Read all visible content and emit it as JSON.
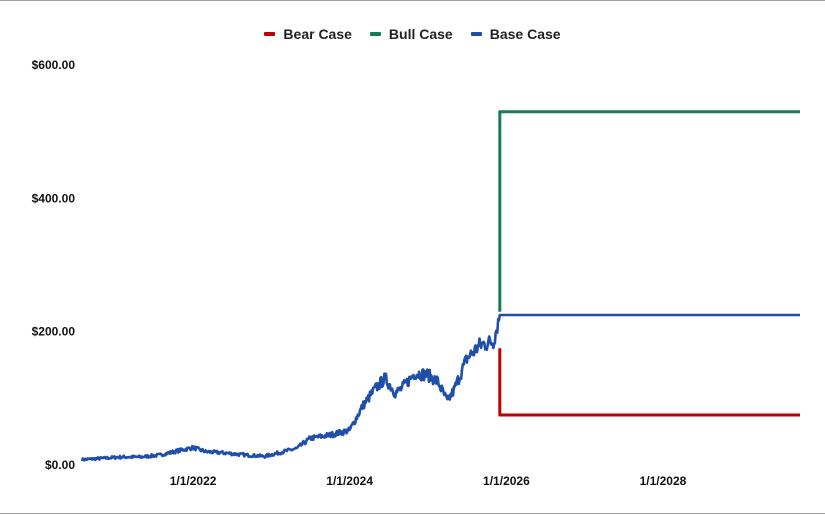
{
  "chart_data": {
    "type": "line",
    "title": "",
    "xlabel": "",
    "ylabel": "",
    "x_ticks": [
      "1/1/2022",
      "1/1/2024",
      "1/1/2026",
      "1/1/2028"
    ],
    "y_ticks": [
      "$0.00",
      "$200.00",
      "$400.00",
      "$600.00"
    ],
    "xlim": [
      "2020-08-01",
      "2029-10-01"
    ],
    "ylim": [
      0,
      600
    ],
    "grid": false,
    "legend_position": "top",
    "series": [
      {
        "name": "Bear Case",
        "color": "#c00000",
        "points": [
          [
            "2025-12-01",
            175
          ],
          [
            "2025-12-01",
            75
          ],
          [
            "2029-10-01",
            75
          ]
        ]
      },
      {
        "name": "Bull Case",
        "color": "#1a7a55",
        "points": [
          [
            "2025-12-01",
            230
          ],
          [
            "2025-12-01",
            530
          ],
          [
            "2029-10-01",
            530
          ]
        ]
      },
      {
        "name": "Base Case",
        "color": "#1f4fa8",
        "points": [
          [
            "2020-08-01",
            8
          ],
          [
            "2020-11-01",
            10
          ],
          [
            "2021-02-01",
            12
          ],
          [
            "2021-05-01",
            12
          ],
          [
            "2021-08-01",
            15
          ],
          [
            "2021-11-01",
            22
          ],
          [
            "2022-01-01",
            26
          ],
          [
            "2022-03-01",
            20
          ],
          [
            "2022-06-01",
            18
          ],
          [
            "2022-09-01",
            15
          ],
          [
            "2022-12-01",
            13
          ],
          [
            "2023-02-01",
            18
          ],
          [
            "2023-05-01",
            25
          ],
          [
            "2023-07-01",
            40
          ],
          [
            "2023-10-01",
            45
          ],
          [
            "2024-01-01",
            52
          ],
          [
            "2024-03-01",
            88
          ],
          [
            "2024-05-01",
            115
          ],
          [
            "2024-06-15",
            130
          ],
          [
            "2024-08-01",
            108
          ],
          [
            "2024-09-01",
            115
          ],
          [
            "2024-11-01",
            138
          ],
          [
            "2025-01-01",
            135
          ],
          [
            "2025-02-15",
            125
          ],
          [
            "2025-04-01",
            95
          ],
          [
            "2025-05-01",
            112
          ],
          [
            "2025-07-01",
            160
          ],
          [
            "2025-09-01",
            180
          ],
          [
            "2025-11-01",
            185
          ],
          [
            "2025-12-01",
            225
          ],
          [
            "2029-10-01",
            225
          ]
        ]
      }
    ]
  }
}
